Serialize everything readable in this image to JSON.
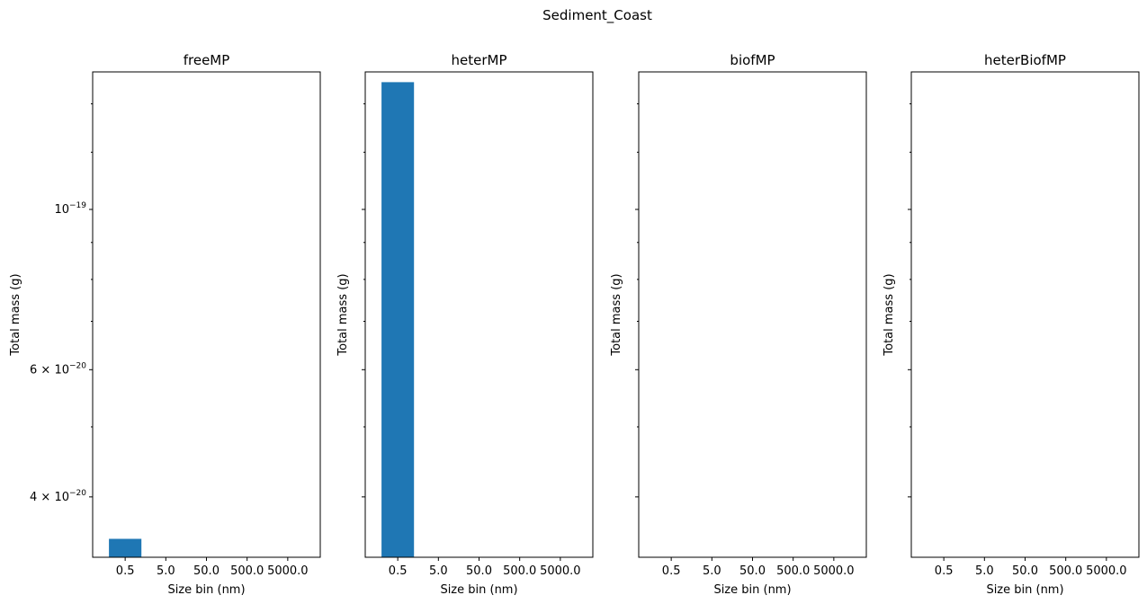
{
  "chart_data": {
    "suptitle": "Sediment_Coast",
    "type": "bar",
    "yscale": "log",
    "sharey": true,
    "ylim": [
      3.3e-20,
      1.55e-19
    ],
    "yticks_major": [
      {
        "value": 1e-19,
        "label": "10",
        "exp": "−19"
      },
      {
        "value": 6e-20,
        "label": "6 × 10",
        "exp": "−20"
      },
      {
        "value": 4e-20,
        "label": "4 × 10",
        "exp": "−20"
      }
    ],
    "yticks_minor": [
      1.4e-19,
      1.2e-19,
      9e-20,
      8e-20,
      7e-20,
      5e-20
    ],
    "categories": [
      "0.5",
      "5.0",
      "50.0",
      "500.0",
      "5000.0"
    ],
    "xlabel": "Size bin (nm)",
    "ylabel": "Total mass (g)",
    "bar_color": "#1f77b4",
    "subplots": [
      {
        "title": "freeMP",
        "values": [
          3.5e-20,
          0,
          0,
          0,
          0
        ]
      },
      {
        "title": "heterMP",
        "values": [
          1.5e-19,
          0,
          0,
          0,
          0
        ]
      },
      {
        "title": "biofMP",
        "values": [
          0,
          0,
          0,
          0,
          0
        ]
      },
      {
        "title": "heterBiofMP",
        "values": [
          0,
          0,
          0,
          0,
          0
        ]
      }
    ]
  }
}
